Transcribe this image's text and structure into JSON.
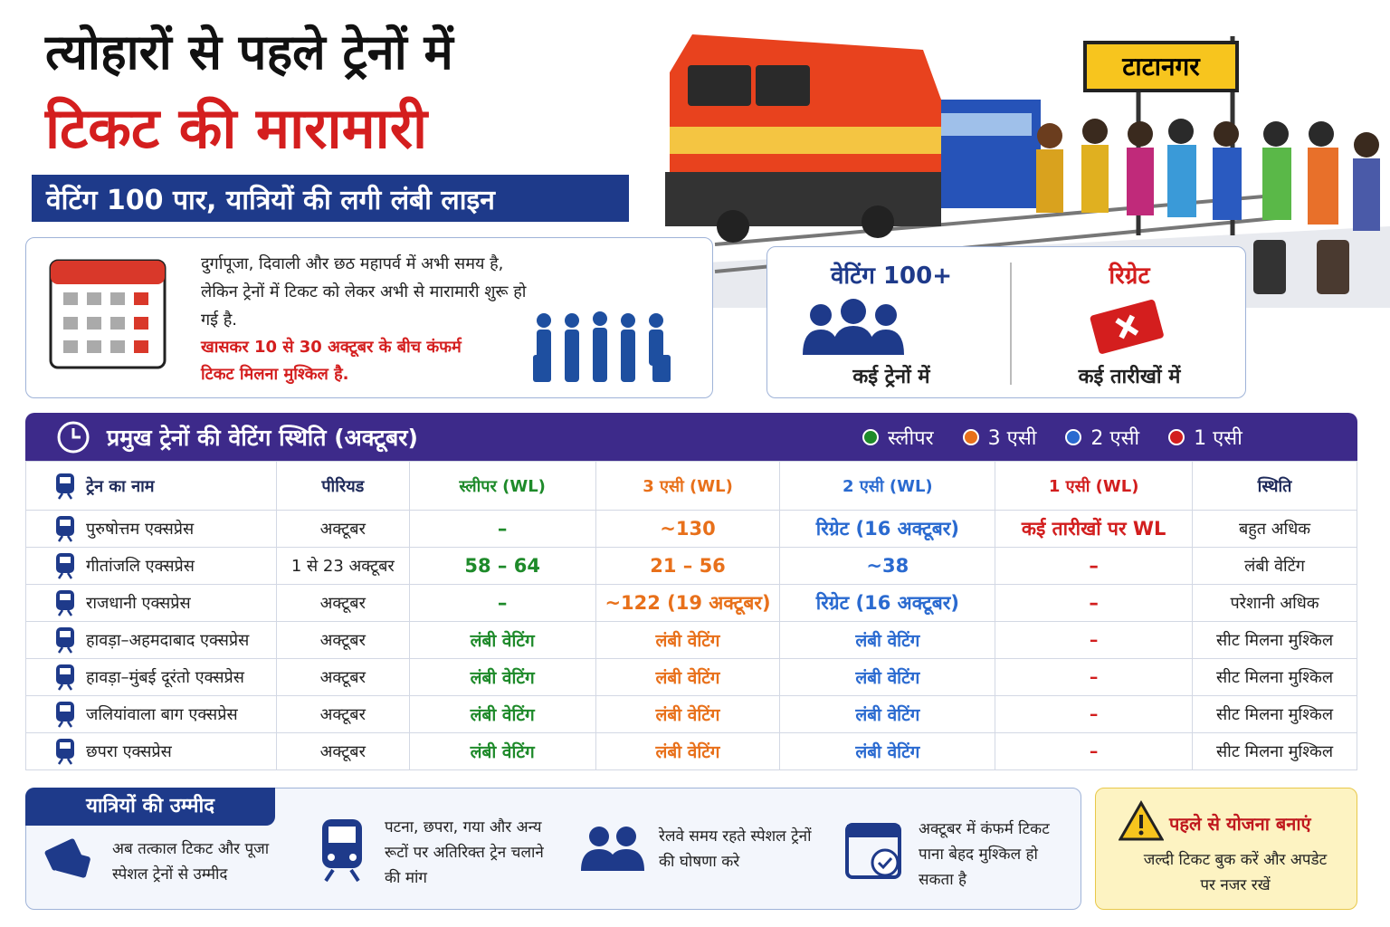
{
  "header": {
    "title_line1": "त्योहारों से पहले ट्रेनों में",
    "title_line2": "टिकट की मारामारी",
    "subtitle": "वेटिंग 100 पार, यात्रियों की लगी लंबी लाइन"
  },
  "station_sign": "टाटानगर",
  "intro": {
    "text": "दुर्गापूजा, दिवाली और छठ महापर्व में अभी समय है, लेकिन ट्रेनों में टिकट को लेकर अभी से मारामारी शुरू हो गई है.",
    "highlight": "खासकर 10 से 30 अक्टूबर के बीच कंफर्म टिकट मिलना मुश्किल है."
  },
  "stats": [
    {
      "label": "वेटिंग 100+",
      "caption": "कई ट्रेनों में"
    },
    {
      "label": "रिग्रेट",
      "caption": "कई तारीखों में"
    }
  ],
  "table": {
    "title": "प्रमुख ट्रेनों की वेटिंग स्थिति (अक्टूबर)",
    "legend": [
      {
        "label": "स्लीपर",
        "color": "#1e8a2a"
      },
      {
        "label": "3 एसी",
        "color": "#e8701a"
      },
      {
        "label": "2 एसी",
        "color": "#2a6ad0"
      },
      {
        "label": "1 एसी",
        "color": "#d21e1e"
      }
    ],
    "headers": [
      "ट्रेन का नाम",
      "पीरियड",
      "स्लीपर (WL)",
      "3 एसी (WL)",
      "2 एसी (WL)",
      "1 एसी (WL)",
      "स्थिति"
    ],
    "rows": [
      [
        "पुरुषोत्तम एक्सप्रेस",
        "अक्टूबर",
        "–",
        "~130",
        "रिग्रेट (16 अक्टूबर)",
        "कई तारीखों पर WL",
        "बहुत अधिक"
      ],
      [
        "गीतांजलि एक्सप्रेस",
        "1 से 23 अक्टूबर",
        "58 – 64",
        "21 – 56",
        "~38",
        "–",
        "लंबी वेटिंग"
      ],
      [
        "राजधानी एक्सप्रेस",
        "अक्टूबर",
        "–",
        "~122 (19 अक्टूबर)",
        "रिग्रेट (16 अक्टूबर)",
        "–",
        "परेशानी अधिक"
      ],
      [
        "हावड़ा–अहमदाबाद एक्सप्रेस",
        "अक्टूबर",
        "लंबी वेटिंग",
        "लंबी वेटिंग",
        "लंबी वेटिंग",
        "–",
        "सीट मिलना मुश्किल"
      ],
      [
        "हावड़ा–मुंबई दूरंतो एक्सप्रेस",
        "अक्टूबर",
        "लंबी वेटिंग",
        "लंबी वेटिंग",
        "लंबी वेटिंग",
        "–",
        "सीट मिलना मुश्किल"
      ],
      [
        "जलियांवाला बाग एक्सप्रेस",
        "अक्टूबर",
        "लंबी वेटिंग",
        "लंबी वेटिंग",
        "लंबी वेटिंग",
        "–",
        "सीट मिलना मुश्किल"
      ],
      [
        "छपरा एक्सप्रेस",
        "अक्टूबर",
        "लंबी वेटिंग",
        "लंबी वेटिंग",
        "लंबी वेटिंग",
        "–",
        "सीट मिलना मुश्किल"
      ]
    ]
  },
  "footer": {
    "title": "यात्रियों की उम्मीद",
    "items": [
      "अब तत्काल टिकट और पूजा स्पेशल ट्रेनों से उम्मीद",
      "पटना, छपरा, गया और अन्य रूटों पर अतिरिक्त ट्रेन चलाने की मांग",
      "रेलवे समय रहते स्पेशल ट्रेनों की घोषणा करे",
      "अक्टूबर में कंफर्म टिकट पाना बेहद मुश्किल हो सकता है"
    ],
    "tip_title": "पहले से योजना बनाएं",
    "tip_text": "जल्दी टिकट बुक करें और अपडेट पर नजर रखें"
  }
}
